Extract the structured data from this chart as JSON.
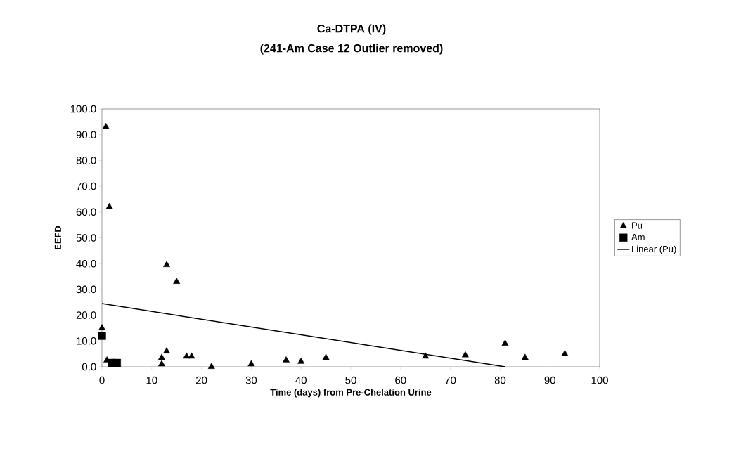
{
  "chart_data": {
    "type": "scatter",
    "title": "Ca-DTPA (IV)",
    "subtitle": "(241-Am Case 12 Outlier removed)",
    "xlabel": "Time (days) from Pre-Chelation Urine",
    "ylabel": "EEFD",
    "xlim": [
      0,
      100
    ],
    "ylim": [
      0,
      100
    ],
    "xticks": [
      0,
      10,
      20,
      30,
      40,
      50,
      60,
      70,
      80,
      90,
      100
    ],
    "yticks": [
      {
        "value": 0,
        "label": "0.0"
      },
      {
        "value": 10,
        "label": "10.0"
      },
      {
        "value": 20,
        "label": "20.0"
      },
      {
        "value": 30,
        "label": "30.0"
      },
      {
        "value": 40,
        "label": "40.0"
      },
      {
        "value": 50,
        "label": "50.0"
      },
      {
        "value": 60,
        "label": "60.0"
      },
      {
        "value": 70,
        "label": "70.0"
      },
      {
        "value": 80,
        "label": "80.0"
      },
      {
        "value": 90,
        "label": "90.0"
      },
      {
        "value": 100,
        "label": "100.0"
      }
    ],
    "legend": "right",
    "series": [
      {
        "name": "Pu",
        "marker": "triangle",
        "color": "#000000",
        "x": [
          0.8,
          1.5,
          0,
          1,
          12,
          12,
          13,
          13,
          15,
          17,
          18,
          22,
          30,
          37,
          40,
          45,
          65,
          73,
          81,
          85,
          93
        ],
        "values": [
          93,
          62,
          15,
          2.5,
          3.5,
          1,
          6,
          39.5,
          33,
          4,
          4,
          0,
          1,
          2.5,
          2,
          3.5,
          4,
          4.5,
          9,
          3.5,
          5
        ]
      },
      {
        "name": "Am",
        "marker": "square",
        "color": "#000000",
        "x": [
          0,
          2,
          3
        ],
        "values": [
          12,
          1.5,
          1.5
        ]
      },
      {
        "name": "Linear (Pu)",
        "type": "line",
        "marker": "none",
        "line_style": "solid",
        "color": "#000000",
        "x": [
          0,
          81
        ],
        "values": [
          24.5,
          0
        ]
      }
    ]
  }
}
